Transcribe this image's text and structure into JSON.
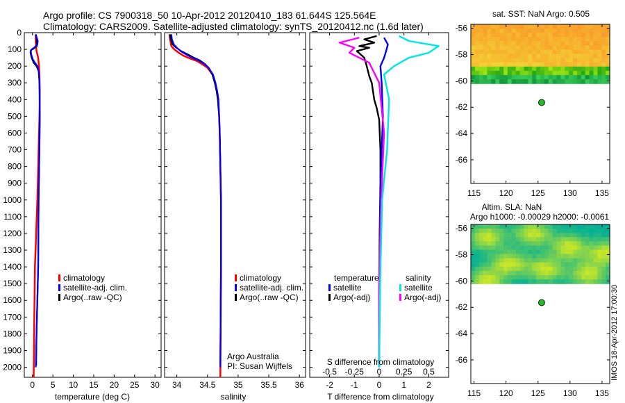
{
  "header": {
    "line1": "Argo profile: CS 7900318_50 10-Apr-2012 20120410_183 61.644S 125.564E",
    "line2": "Climatology: CARS2009. Satellite-adjusted climatology: synTS_20120412.nc (1.6d later)"
  },
  "side_label": "IMOS 18-Apr-2012 17:00:30",
  "depth_axis": {
    "ticks": [
      0,
      100,
      200,
      300,
      400,
      500,
      600,
      700,
      800,
      900,
      1000,
      1100,
      1200,
      1300,
      1400,
      1500,
      1600,
      1700,
      1800,
      1900,
      2000
    ],
    "range": [
      0,
      2060
    ]
  },
  "colors": {
    "climatology": "#ff0000",
    "satellite": "#0000ff",
    "argo": "#000000",
    "sal_satellite": "#00e5e5",
    "sal_argo": "#ff00ff",
    "land_green": "#22bb22"
  },
  "chart_data": [
    {
      "type": "line",
      "id": "temperature",
      "xlabel": "temperature (deg C)",
      "ylabel": "",
      "xlim": [
        -2,
        31.5
      ],
      "ylim": [
        2060,
        0
      ],
      "xticks": [
        0,
        5,
        10,
        15,
        20,
        25,
        30
      ],
      "legend": [
        "climatology",
        "satellite-adj. clim.",
        "Argo(..raw -QC)"
      ],
      "series": [
        {
          "name": "climatology",
          "x": [
            0.3,
            0.4,
            0.6,
            1.2,
            1.5,
            1.7,
            1.8,
            1.7,
            1.6,
            1.5,
            1.4,
            1.2,
            1.0,
            0.9,
            0.8,
            0.8
          ],
          "y": [
            2060,
            1800,
            1400,
            1000,
            700,
            500,
            350,
            250,
            200,
            180,
            150,
            130,
            110,
            90,
            60,
            10
          ]
        },
        {
          "name": "satellite-adj. clim.",
          "x": [
            0.8,
            1.0,
            1.4,
            1.5,
            1.7,
            1.8,
            1.7,
            1.6,
            1.2,
            0.6,
            0.1,
            -0.3,
            -0.4,
            -0.2,
            0.4,
            1.2,
            1.3,
            1.0,
            0.8
          ],
          "y": [
            2000,
            1800,
            1400,
            1000,
            700,
            500,
            300,
            240,
            200,
            180,
            160,
            130,
            110,
            100,
            90,
            70,
            50,
            25,
            10
          ]
        },
        {
          "name": "Argo(..raw -QC)",
          "x": [
            0.9,
            1.0,
            1.4,
            1.5,
            1.7,
            1.8,
            1.7,
            1.5,
            1.0,
            0.3,
            -0.2,
            -0.5,
            -0.4,
            0.3,
            1.1,
            1.0,
            0.8
          ],
          "y": [
            1990,
            1800,
            1400,
            1000,
            700,
            500,
            300,
            230,
            200,
            180,
            150,
            120,
            105,
            95,
            80,
            40,
            10
          ]
        }
      ]
    },
    {
      "type": "line",
      "id": "salinity",
      "xlabel": "salinity",
      "ylabel": "",
      "xlim": [
        33.8,
        36.1
      ],
      "ylim": [
        2060,
        0
      ],
      "xticks": [
        34,
        34.5,
        35,
        35.5,
        36
      ],
      "legend": [
        "climatology",
        "satellite-adj. clim.",
        "Argo(..raw -QC)"
      ],
      "annotation": [
        "Argo Australia",
        "PI: Susan Wijffels"
      ],
      "series": [
        {
          "name": "climatology",
          "x": [
            33.88,
            33.89,
            33.91,
            33.96,
            34.03,
            34.12,
            34.22,
            34.33,
            34.42,
            34.5,
            34.58,
            34.62,
            34.65,
            34.67,
            34.69,
            34.7,
            34.71,
            34.72,
            34.72,
            34.71
          ],
          "y": [
            10,
            40,
            80,
            100,
            120,
            140,
            155,
            170,
            190,
            210,
            250,
            300,
            350,
            400,
            500,
            600,
            800,
            1000,
            1400,
            2060
          ]
        },
        {
          "name": "satellite-adj. clim.",
          "x": [
            33.91,
            33.92,
            33.95,
            34.0,
            34.06,
            34.15,
            34.25,
            34.35,
            34.44,
            34.52,
            34.59,
            34.63,
            34.66,
            34.68,
            34.69,
            34.7,
            34.71,
            34.72,
            34.72,
            34.71
          ],
          "y": [
            10,
            40,
            70,
            90,
            110,
            130,
            150,
            165,
            185,
            210,
            250,
            300,
            350,
            400,
            500,
            600,
            800,
            1000,
            1400,
            2000
          ]
        },
        {
          "name": "Argo(..raw -QC)",
          "x": [
            33.89,
            33.9,
            33.93,
            33.99,
            34.07,
            34.18,
            34.28,
            34.37,
            34.45,
            34.52,
            34.58,
            34.62,
            34.65,
            34.67,
            34.69,
            34.7,
            34.71,
            34.72,
            34.72,
            34.71
          ],
          "y": [
            10,
            40,
            70,
            90,
            110,
            130,
            150,
            165,
            185,
            210,
            250,
            300,
            350,
            400,
            500,
            600,
            800,
            1000,
            1400,
            1990
          ]
        }
      ]
    },
    {
      "type": "line",
      "id": "difference",
      "xlabel": "T difference from climatology",
      "xlabel_top": "S difference from climatology",
      "xlim": [
        -2.8,
        2.8
      ],
      "ylim": [
        2060,
        0
      ],
      "xticks": [
        -2,
        -1,
        0,
        1,
        2
      ],
      "xticks_s": [
        -0.5,
        -0.25,
        0,
        0.25,
        0.5
      ],
      "legend_titles": [
        "temperature",
        "salinity"
      ],
      "legend": [
        "satellite",
        "Argo(-adj)",
        "satellite",
        "Argo(-adj)"
      ],
      "series": [
        {
          "name": "temperature satellite",
          "x": [
            0,
            0.02,
            0.05,
            0.1,
            0.15,
            0.1,
            0.05,
            0.2,
            0.3,
            0.35,
            0.2
          ],
          "y": [
            2000,
            1500,
            1000,
            700,
            500,
            300,
            200,
            150,
            100,
            70,
            30
          ]
        },
        {
          "name": "temperature Argo(-adj)",
          "x": [
            0,
            0,
            0.02,
            0.05,
            0.05,
            0.0,
            -0.1,
            -0.2,
            -0.3,
            -0.4,
            -0.5,
            -0.6,
            -0.9,
            -0.4,
            -0.8,
            -0.2,
            -0.6,
            -0.1
          ],
          "y": [
            1990,
            1600,
            1200,
            900,
            700,
            520,
            450,
            400,
            300,
            260,
            200,
            150,
            110,
            90,
            80,
            60,
            40,
            20
          ]
        },
        {
          "name": "salinity satellite",
          "x": [
            0,
            0.01,
            0.03,
            0.08,
            0.1,
            0.05,
            0.15,
            0.3,
            0.5,
            0.6,
            0.3,
            0.2
          ],
          "y": [
            2000,
            1500,
            1000,
            700,
            400,
            250,
            200,
            150,
            120,
            80,
            50,
            20
          ]
        },
        {
          "name": "salinity Argo(-adj)",
          "x": [
            0,
            0,
            0.02,
            0.05,
            0.0,
            -0.1,
            -0.3,
            -0.25,
            -0.4,
            -0.2
          ],
          "y": [
            1990,
            1500,
            1000,
            600,
            300,
            180,
            120,
            90,
            60,
            30
          ]
        }
      ]
    },
    {
      "type": "heatmap",
      "id": "sst-map",
      "title": "sat. SST: NaN Argo: 0.505",
      "xlim": [
        114.5,
        136.2
      ],
      "ylim": [
        -67.8,
        -55.7
      ],
      "xticks": [
        115,
        120,
        125,
        130,
        135
      ],
      "yticks": [
        -56,
        -58,
        -60,
        -62,
        -64,
        -66
      ],
      "data_lat_range": [
        -60.2,
        -55.7
      ],
      "argo_point": [
        125.564,
        -61.644
      ]
    },
    {
      "type": "heatmap",
      "id": "sla-map",
      "title": "Altim. SLA: NaN",
      "subtitle": "Argo h1000: -0.00029 h2000: -0.0061",
      "xlim": [
        114.5,
        136.2
      ],
      "ylim": [
        -67.8,
        -55.7
      ],
      "xticks": [
        115,
        120,
        125,
        130,
        135
      ],
      "yticks": [
        -56,
        -58,
        -60,
        -62,
        -64,
        -66
      ],
      "data_lat_range": [
        -60.2,
        -55.7
      ],
      "argo_point": [
        125.564,
        -61.644
      ]
    }
  ]
}
